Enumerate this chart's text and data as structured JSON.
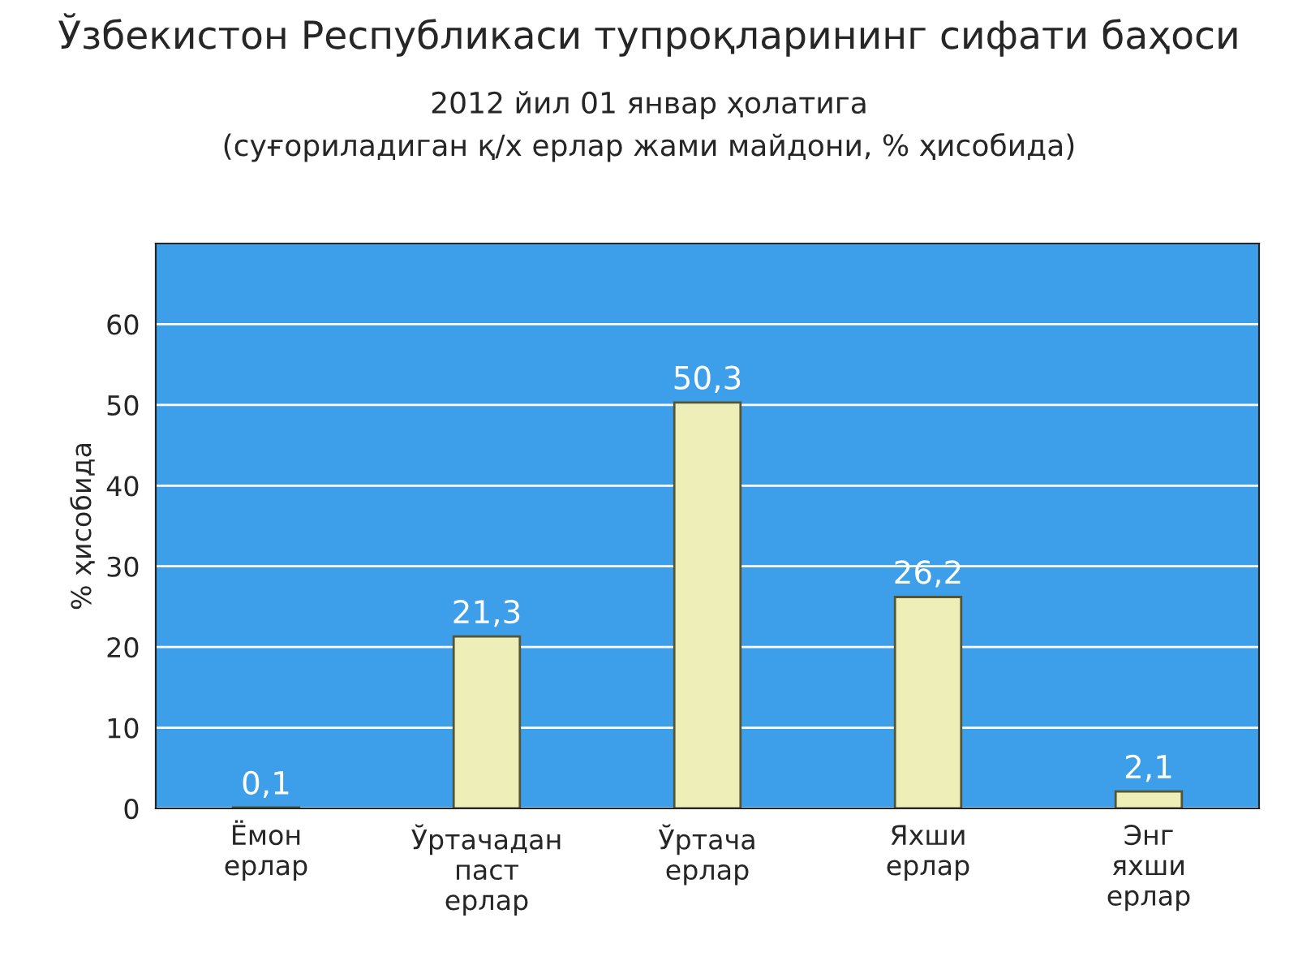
{
  "chart_data": {
    "type": "bar",
    "title": "Ўзбекистон Республикаси тупроқларининг сифати баҳоси",
    "subtitle": "2012 йил 01 январ ҳолатига\n(суғориладиган қ/х ерлар жами майдони, % ҳисобида)",
    "ylabel": "% ҳисобида",
    "categories": [
      "Ёмон ерлар",
      "Ўртачадан паст ерлар",
      "Ўртача ерлар",
      "Яхши ерлар",
      "Энг яхши ерлар"
    ],
    "values": [
      0.1,
      21.3,
      50.3,
      26.2,
      2.1
    ],
    "value_labels": [
      "0,1",
      "21,3",
      "50,3",
      "26,2",
      "2,1"
    ],
    "color": "#eeeeb8",
    "ylim": [
      0,
      70
    ],
    "yticks": [
      0,
      10,
      20,
      30,
      40,
      50,
      60
    ],
    "grid": "y"
  }
}
